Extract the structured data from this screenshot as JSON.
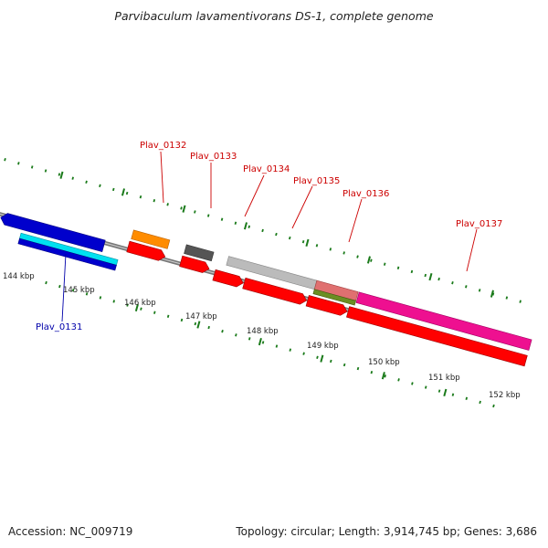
{
  "title": "Parvibaculum lavamentivorans DS-1, complete genome",
  "footer": {
    "accession": "Accession: NC_009719",
    "summary": "Topology: circular; Length: 3,914,745 bp; Genes: 3,686"
  },
  "scale_labels": [
    "144 kbp",
    "145 kbp",
    "146 kbp",
    "147 kbp",
    "148 kbp",
    "149 kbp",
    "150 kbp",
    "151 kbp",
    "152 kbp"
  ],
  "genes": [
    {
      "name": "Plav_0132",
      "color": "#cc0000"
    },
    {
      "name": "Plav_0133",
      "color": "#cc0000"
    },
    {
      "name": "Plav_0134",
      "color": "#cc0000"
    },
    {
      "name": "Plav_0135",
      "color": "#cc0000"
    },
    {
      "name": "Plav_0136",
      "color": "#cc0000"
    },
    {
      "name": "Plav_0137",
      "color": "#cc0000"
    },
    {
      "name": "Plav_0131",
      "color": "#0000aa"
    }
  ]
}
